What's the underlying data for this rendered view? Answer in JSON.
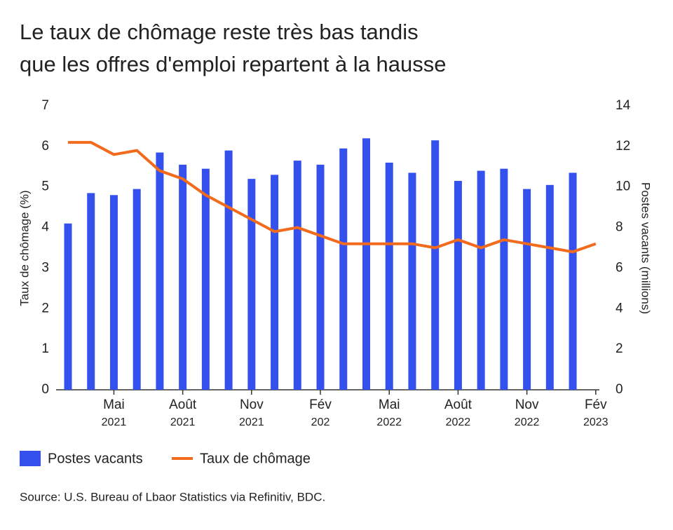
{
  "chart_data": {
    "type": "bar_line",
    "title": [
      "Le taux de chômage reste très bas tandis",
      "que les offres d'emploi repartent à la hausse"
    ],
    "categories": [
      null,
      null,
      "Mai",
      null,
      null,
      "Août",
      null,
      null,
      "Nov",
      null,
      null,
      "Fév",
      null,
      null,
      "Mai",
      null,
      null,
      "Août",
      null,
      null,
      "Nov",
      null,
      null,
      "Fév"
    ],
    "category_years": [
      null,
      null,
      "2021",
      null,
      null,
      "2021",
      null,
      null,
      "2021",
      null,
      null,
      "202",
      null,
      null,
      "2022",
      null,
      null,
      "2022",
      null,
      null,
      "2022",
      null,
      null,
      "2023"
    ],
    "series": [
      {
        "name": "Postes vacants",
        "type": "bar",
        "axis": "y2",
        "color": "#3451ee",
        "values": [
          8.2,
          9.7,
          9.6,
          9.9,
          11.7,
          11.1,
          10.9,
          11.8,
          10.4,
          10.6,
          11.3,
          11.1,
          11.9,
          12.4,
          11.2,
          10.7,
          12.3,
          10.3,
          10.8,
          10.9,
          9.9,
          10.1,
          10.7,
          null
        ]
      },
      {
        "name": "Taux de chômage",
        "type": "line",
        "axis": "y",
        "color": "#f26a1b",
        "values": [
          6.1,
          6.1,
          5.8,
          5.9,
          5.4,
          5.2,
          4.8,
          4.5,
          4.2,
          3.9,
          4.0,
          3.8,
          3.6,
          3.6,
          3.6,
          3.6,
          3.5,
          3.7,
          3.5,
          3.7,
          3.6,
          3.5,
          3.4,
          3.6
        ]
      }
    ],
    "ylabel": "Taux de chômage (%)",
    "y2label": "Postes vacants (millions)",
    "ylim": [
      0,
      7
    ],
    "yticks": [
      0,
      1,
      2,
      3,
      4,
      5,
      6,
      7
    ],
    "y2lim": [
      0,
      14
    ],
    "y2ticks": [
      0,
      2,
      4,
      6,
      8,
      10,
      12,
      14
    ],
    "source": "Source: U.S. Bureau of Lbaor Statistics via Refinitiv, BDC."
  }
}
